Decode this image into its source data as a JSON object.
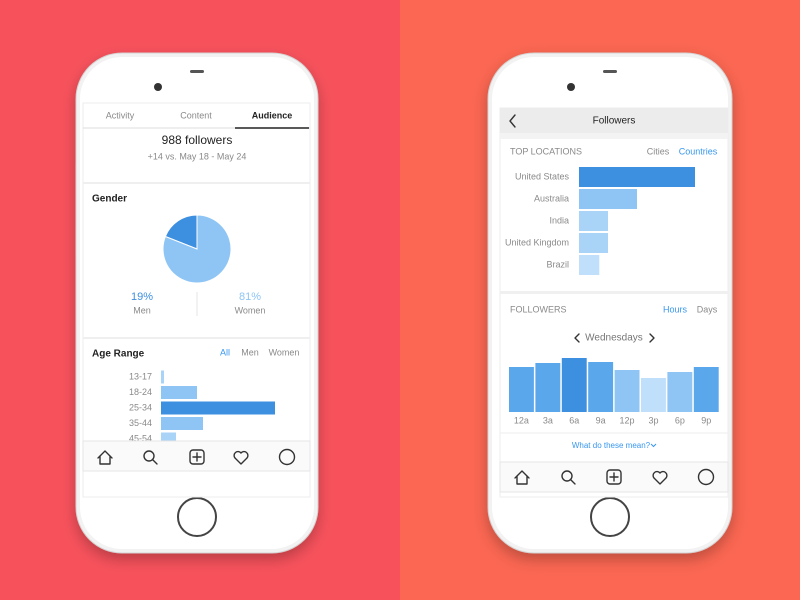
{
  "left_screen": {
    "tabs": [
      "Activity",
      "Content",
      "Audience"
    ],
    "followers": "988 followers",
    "change": "+14 vs. May 18 - May 24",
    "gender": {
      "type": "pie",
      "title": "Gender",
      "categories": [
        "Men",
        "Women"
      ],
      "values": [
        19,
        81
      ],
      "value_labels": [
        "19%",
        "81%"
      ],
      "colors": [
        "#3d8fe0",
        "#8ec5f5"
      ]
    },
    "age_range": {
      "type": "bar",
      "title": "Age Range",
      "filters": [
        "All",
        "Men",
        "Women"
      ],
      "categories": [
        "13-17",
        "18-24",
        "25-34",
        "35-44",
        "45-54"
      ],
      "values": [
        1,
        12,
        38,
        14,
        5
      ],
      "colors": [
        "#a9d3f7",
        "#8ec5f5",
        "#3d8fe0",
        "#8ec5f5",
        "#a9d3f7"
      ]
    }
  },
  "right_screen": {
    "header": "Followers",
    "top_locations": {
      "type": "bar",
      "title": "TOP LOCATIONS",
      "filters": [
        "Cities",
        "Countries"
      ],
      "categories": [
        "United States",
        "Australia",
        "India",
        "United Kingdom",
        "Brazil"
      ],
      "values": [
        40,
        20,
        10,
        10,
        7
      ],
      "colors": [
        "#3d8fe0",
        "#8ec5f5",
        "#a9d3f7",
        "#a9d3f7",
        "#bfdffa"
      ]
    },
    "followers_activity": {
      "type": "column",
      "title": "FOLLOWERS",
      "filters": [
        "Hours",
        "Days"
      ],
      "day": "Wednesdays",
      "categories": [
        "12a",
        "3a",
        "6a",
        "9a",
        "12p",
        "3p",
        "6p",
        "9p"
      ],
      "values": [
        45,
        49,
        54,
        50,
        42,
        34,
        40,
        45
      ],
      "colors": [
        "#5aa7ec",
        "#5aa7ec",
        "#3d8fe0",
        "#5aa7ec",
        "#8ec5f5",
        "#bfdffa",
        "#8ec5f5",
        "#5aa7ec"
      ]
    },
    "help": "What do these mean?"
  }
}
